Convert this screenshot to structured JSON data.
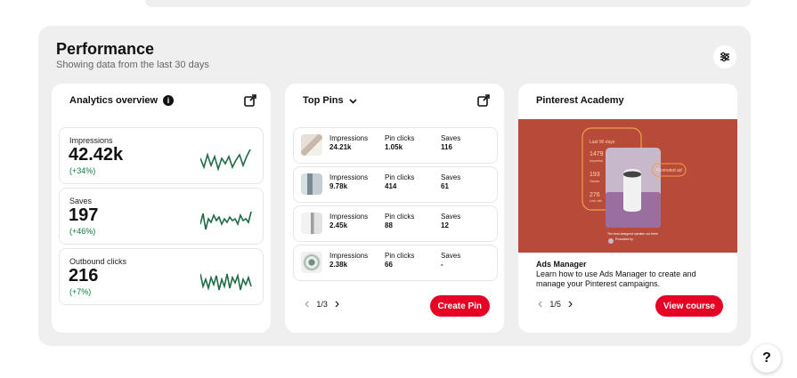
{
  "performance": {
    "title": "Performance",
    "subtitle": "Showing data from the last 30 days"
  },
  "analytics": {
    "title": "Analytics overview",
    "metrics": [
      {
        "label": "Impressions",
        "value": "42.42k",
        "change": "(+34%)"
      },
      {
        "label": "Saves",
        "value": "197",
        "change": "(+46%)"
      },
      {
        "label": "Outbound clicks",
        "value": "216",
        "change": "(+7%)"
      }
    ]
  },
  "top_pins": {
    "title": "Top Pins",
    "labels": {
      "impressions": "Impressions",
      "pin_clicks": "Pin clicks",
      "saves": "Saves"
    },
    "rows": [
      {
        "impressions": "24.21k",
        "pin_clicks": "1.05k",
        "saves": "116"
      },
      {
        "impressions": "9.78k",
        "pin_clicks": "414",
        "saves": "61"
      },
      {
        "impressions": "2.45k",
        "pin_clicks": "88",
        "saves": "12"
      },
      {
        "impressions": "2.38k",
        "pin_clicks": "66",
        "saves": "-"
      }
    ],
    "pager": "1/3",
    "button": "Create Pin"
  },
  "academy": {
    "title": "Pinterest Academy",
    "image_text": {
      "period": "Last 90 days",
      "stat1": "1479",
      "stat1_label": "Impressi",
      "stat2": "193",
      "stat2_label": "Saves",
      "stat3": "276",
      "stat3_label": "Link clic",
      "badge": "Promoted ad",
      "caption": "The best-designed speaker out there",
      "promoted": "Promoted by"
    },
    "course_title": "Ads Manager",
    "course_desc": "Learn how to use Ads Manager to create and manage your Pinterest campaigns.",
    "pager": "1/5",
    "button": "View course"
  },
  "help": {
    "label": "?"
  },
  "colors": {
    "accent": "#e60023",
    "positive": "#0b7a3e",
    "sparkline": "#1f6b45",
    "academy_bg": "#b74a38"
  }
}
